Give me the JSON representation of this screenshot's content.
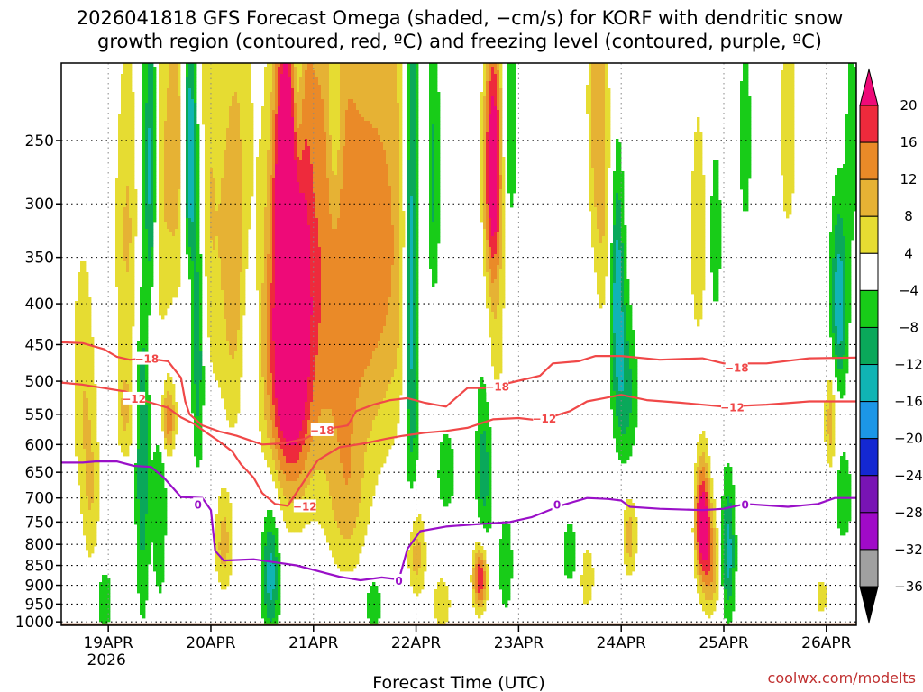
{
  "title_lines": [
    "2026041818 GFS Forecast Omega (shaded, −cm/s) for KORF with dendritic snow",
    "growth region (contoured, red, ºC) and freezing level (contoured, purple, ºC)"
  ],
  "credit": "coolwx.com/modelts",
  "colors": {
    "dendritic_contour": "#f04848",
    "freezing_contour": "#9a10c8",
    "ground": "#9c5a30",
    "grid": "#000000"
  },
  "chart_data": {
    "type": "heatmap",
    "title": "2026041818 GFS Forecast Omega (shaded, −cm/s) for KORF with dendritic snow growth region (contoured, red, ºC) and freezing level (contoured, purple, ºC)",
    "xlabel": "Forecast Time (UTC)",
    "ylabel": "",
    "xlim_hours": [
      -5,
      181
    ],
    "ylim_hPa": [
      200,
      1010
    ],
    "x_ticks": [
      {
        "hour": 6,
        "label": "19APR",
        "sublabel": "2026"
      },
      {
        "hour": 30,
        "label": "20APR",
        "sublabel": ""
      },
      {
        "hour": 54,
        "label": "21APR",
        "sublabel": ""
      },
      {
        "hour": 78,
        "label": "22APR",
        "sublabel": ""
      },
      {
        "hour": 102,
        "label": "23APR",
        "sublabel": ""
      },
      {
        "hour": 126,
        "label": "24APR",
        "sublabel": ""
      },
      {
        "hour": 150,
        "label": "25APR",
        "sublabel": ""
      },
      {
        "hour": 174,
        "label": "26APR",
        "sublabel": ""
      }
    ],
    "y_ticks": [
      250,
      300,
      350,
      400,
      450,
      500,
      550,
      600,
      650,
      700,
      750,
      800,
      850,
      900,
      950,
      1000
    ],
    "colorbar": {
      "labels": [
        "20",
        "16",
        "12",
        "8",
        "4",
        "−4",
        "−8",
        "−12",
        "−16",
        "−20",
        "−24",
        "−28",
        "−32",
        "−36"
      ],
      "bins": [
        {
          "lo": 20,
          "hi": 99,
          "color": "#ee0a78"
        },
        {
          "lo": 16,
          "hi": 20,
          "color": "#ee2a3c"
        },
        {
          "lo": 12,
          "hi": 16,
          "color": "#ea8a28"
        },
        {
          "lo": 8,
          "hi": 12,
          "color": "#e6b234"
        },
        {
          "lo": 4,
          "hi": 8,
          "color": "#e6dc32"
        },
        {
          "lo": -4,
          "hi": 4,
          "color": "#ffffff"
        },
        {
          "lo": -8,
          "hi": -4,
          "color": "#18cc18"
        },
        {
          "lo": -12,
          "hi": -8,
          "color": "#0aa85a"
        },
        {
          "lo": -16,
          "hi": -12,
          "color": "#10b4b4"
        },
        {
          "lo": -20,
          "hi": -16,
          "color": "#1c96e6"
        },
        {
          "lo": -24,
          "hi": -20,
          "color": "#1428d2"
        },
        {
          "lo": -28,
          "hi": -24,
          "color": "#7814b4"
        },
        {
          "lo": -32,
          "hi": -28,
          "color": "#a00ac8"
        },
        {
          "lo": -36,
          "hi": -32,
          "color": "#a0a0a0"
        },
        {
          "lo": -99,
          "hi": -36,
          "color": "#000000"
        }
      ]
    },
    "omega_features": [
      {
        "hour": 49,
        "p": 430,
        "sx": 3,
        "sy": 160,
        "amp": 26
      },
      {
        "hour": 56,
        "p": 360,
        "sx": 6,
        "sy": 230,
        "amp": 11
      },
      {
        "hour": 64,
        "p": 380,
        "sx": 6,
        "sy": 210,
        "amp": 8
      },
      {
        "hour": 72,
        "p": 330,
        "sx": 5,
        "sy": 160,
        "amp": 9
      },
      {
        "hour": 48,
        "p": 270,
        "sx": 2,
        "sy": 70,
        "amp": 18
      },
      {
        "hour": 45,
        "p": 460,
        "sx": 3,
        "sy": 140,
        "amp": 9
      },
      {
        "hour": 96,
        "p": 270,
        "sx": 1.5,
        "sy": 70,
        "amp": 26
      },
      {
        "hour": 96,
        "p": 450,
        "sx": 2,
        "sy": 90,
        "amp": 7
      },
      {
        "hour": 36,
        "p": 350,
        "sx": 3,
        "sy": 160,
        "amp": 11
      },
      {
        "hour": 28,
        "p": 300,
        "sx": 3,
        "sy": 140,
        "amp": 9
      },
      {
        "hour": 16,
        "p": 320,
        "sx": 3,
        "sy": 120,
        "amp": 10
      },
      {
        "hour": 22,
        "p": 250,
        "sx": 2,
        "sy": 80,
        "amp": 9
      },
      {
        "hour": 10,
        "p": 330,
        "sx": 2,
        "sy": 110,
        "amp": 7
      },
      {
        "hour": 20,
        "p": 560,
        "sx": 1.2,
        "sy": 40,
        "amp": 15
      },
      {
        "hour": 0,
        "p": 500,
        "sx": 2,
        "sy": 140,
        "amp": 7
      },
      {
        "hour": 145,
        "p": 750,
        "sx": 1.2,
        "sy": 90,
        "amp": 24
      },
      {
        "hour": 147,
        "p": 850,
        "sx": 1.5,
        "sy": 90,
        "amp": 12
      },
      {
        "hour": 93,
        "p": 880,
        "sx": 1.2,
        "sy": 60,
        "amp": 22
      },
      {
        "hour": 33,
        "p": 800,
        "sx": 1.5,
        "sy": 80,
        "amp": 10
      },
      {
        "hour": 78,
        "p": 820,
        "sx": 1.5,
        "sy": 80,
        "amp": 11
      },
      {
        "hour": 128,
        "p": 780,
        "sx": 1.2,
        "sy": 70,
        "amp": 10
      },
      {
        "hour": 118,
        "p": 880,
        "sx": 1.2,
        "sy": 60,
        "amp": 8
      },
      {
        "hour": 120,
        "p": 220,
        "sx": 1.5,
        "sy": 80,
        "amp": 9
      },
      {
        "hour": 122,
        "p": 300,
        "sx": 1.5,
        "sy": 100,
        "amp": 7
      },
      {
        "hour": 144,
        "p": 330,
        "sx": 1.5,
        "sy": 90,
        "amp": 7
      },
      {
        "hour": 175,
        "p": 560,
        "sx": 1,
        "sy": 60,
        "amp": 11
      },
      {
        "hour": 165,
        "p": 240,
        "sx": 1.5,
        "sy": 70,
        "amp": 7
      },
      {
        "hour": 173,
        "p": 930,
        "sx": 1,
        "sy": 40,
        "amp": 7
      },
      {
        "hour": 84,
        "p": 950,
        "sx": 2,
        "sy": 70,
        "amp": 6
      },
      {
        "hour": 62,
        "p": 720,
        "sx": 3,
        "sy": 110,
        "amp": 7
      },
      {
        "hour": 10,
        "p": 550,
        "sx": 1.5,
        "sy": 60,
        "amp": 8
      },
      {
        "hour": 2,
        "p": 700,
        "sx": 1.5,
        "sy": 120,
        "amp": 7
      },
      {
        "hour": 5,
        "p": 940,
        "sx": 1.5,
        "sy": 70,
        "amp": -7
      },
      {
        "hour": 14,
        "p": 530,
        "sx": 1.2,
        "sy": 300,
        "amp": -13
      },
      {
        "hour": 16,
        "p": 280,
        "sx": 1,
        "sy": 90,
        "amp": -20
      },
      {
        "hour": 18,
        "p": 730,
        "sx": 1.2,
        "sy": 160,
        "amp": -8
      },
      {
        "hour": 25,
        "p": 260,
        "sx": 1.2,
        "sy": 70,
        "amp": -22
      },
      {
        "hour": 27,
        "p": 420,
        "sx": 1.2,
        "sy": 140,
        "amp": -15
      },
      {
        "hour": 39,
        "p": 450,
        "sx": 1.5,
        "sy": 100,
        "amp": -8
      },
      {
        "hour": 44,
        "p": 870,
        "sx": 1.5,
        "sy": 120,
        "amp": -14
      },
      {
        "hour": 50,
        "p": 230,
        "sx": 1.2,
        "sy": 80,
        "amp": -16
      },
      {
        "hour": 59,
        "p": 230,
        "sx": 1.2,
        "sy": 70,
        "amp": -8
      },
      {
        "hour": 77,
        "p": 360,
        "sx": 1.2,
        "sy": 220,
        "amp": -19
      },
      {
        "hour": 82,
        "p": 280,
        "sx": 1.2,
        "sy": 90,
        "amp": -10
      },
      {
        "hour": 85,
        "p": 650,
        "sx": 1.5,
        "sy": 60,
        "amp": -8
      },
      {
        "hour": 94,
        "p": 620,
        "sx": 1.5,
        "sy": 160,
        "amp": -10
      },
      {
        "hour": 99,
        "p": 850,
        "sx": 1.2,
        "sy": 90,
        "amp": -8
      },
      {
        "hour": 114,
        "p": 820,
        "sx": 1.5,
        "sy": 60,
        "amp": -7
      },
      {
        "hour": 125,
        "p": 380,
        "sx": 1.2,
        "sy": 90,
        "amp": -14
      },
      {
        "hour": 127,
        "p": 520,
        "sx": 2,
        "sy": 90,
        "amp": -10
      },
      {
        "hour": 151,
        "p": 820,
        "sx": 1.2,
        "sy": 120,
        "amp": -14
      },
      {
        "hour": 148,
        "p": 330,
        "sx": 1,
        "sy": 60,
        "amp": -8
      },
      {
        "hour": 155,
        "p": 250,
        "sx": 1,
        "sy": 50,
        "amp": -8
      },
      {
        "hour": 177,
        "p": 400,
        "sx": 1.5,
        "sy": 80,
        "amp": -15
      },
      {
        "hour": 180,
        "p": 250,
        "sx": 1,
        "sy": 60,
        "amp": -7
      },
      {
        "hour": 178,
        "p": 700,
        "sx": 1.5,
        "sy": 70,
        "amp": -8
      },
      {
        "hour": 100,
        "p": 240,
        "sx": 1.2,
        "sy": 60,
        "amp": -8
      },
      {
        "hour": 68,
        "p": 950,
        "sx": 1.5,
        "sy": 60,
        "amp": -7
      }
    ],
    "contours": [
      {
        "name": "freezing-level-contour",
        "label": "0",
        "color_key": "freezing_contour",
        "points": [
          [
            -5,
            632
          ],
          [
            0,
            632
          ],
          [
            3,
            630
          ],
          [
            8,
            630
          ],
          [
            12,
            638
          ],
          [
            16,
            640
          ],
          [
            19,
            660
          ],
          [
            23,
            698
          ],
          [
            28,
            700
          ],
          [
            30,
            725
          ],
          [
            31,
            815
          ],
          [
            33,
            838
          ],
          [
            40,
            835
          ],
          [
            50,
            850
          ],
          [
            60,
            878
          ],
          [
            65,
            887
          ],
          [
            70,
            880
          ],
          [
            74,
            885
          ],
          [
            76,
            810
          ],
          [
            79,
            770
          ],
          [
            85,
            760
          ],
          [
            92,
            755
          ],
          [
            100,
            750
          ],
          [
            105,
            740
          ],
          [
            112,
            715
          ],
          [
            118,
            700
          ],
          [
            123,
            702
          ],
          [
            126,
            705
          ],
          [
            128,
            718
          ],
          [
            135,
            722
          ],
          [
            145,
            725
          ],
          [
            150,
            722
          ],
          [
            155,
            712
          ],
          [
            165,
            718
          ],
          [
            172,
            712
          ],
          [
            176,
            700
          ],
          [
            181,
            700
          ]
        ],
        "label_positions": [
          [
            27,
            712
          ],
          [
            74,
            887
          ],
          [
            111,
            712
          ],
          [
            155,
            712
          ]
        ]
      },
      {
        "name": "dsg-minus12-contour",
        "label": "−12",
        "color_key": "dendritic_contour",
        "points": [
          [
            -5,
            502
          ],
          [
            0,
            505
          ],
          [
            5,
            510
          ],
          [
            10,
            515
          ],
          [
            15,
            530
          ],
          [
            20,
            540
          ],
          [
            23,
            555
          ],
          [
            26,
            565
          ],
          [
            29,
            580
          ],
          [
            32,
            595
          ],
          [
            35,
            612
          ],
          [
            37,
            635
          ],
          [
            40,
            660
          ],
          [
            42,
            690
          ],
          [
            45,
            712
          ],
          [
            48,
            716
          ],
          [
            55,
            628
          ],
          [
            60,
            605
          ],
          [
            66,
            598
          ],
          [
            71,
            590
          ],
          [
            75,
            585
          ],
          [
            80,
            580
          ],
          [
            85,
            577
          ],
          [
            90,
            572
          ],
          [
            96,
            558
          ],
          [
            102,
            556
          ],
          [
            107,
            560
          ],
          [
            114,
            545
          ],
          [
            118,
            530
          ],
          [
            122,
            525
          ],
          [
            126,
            520
          ],
          [
            132,
            528
          ],
          [
            140,
            532
          ],
          [
            150,
            538
          ],
          [
            160,
            535
          ],
          [
            170,
            530
          ],
          [
            181,
            530
          ]
        ],
        "label_positions": [
          [
            12,
            525
          ],
          [
            52,
            716
          ],
          [
            108,
            556
          ],
          [
            152,
            538
          ]
        ]
      },
      {
        "name": "dsg-minus18-contour",
        "label": "−18",
        "color_key": "dendritic_contour",
        "points": [
          [
            -5,
            447
          ],
          [
            0,
            448
          ],
          [
            5,
            456
          ],
          [
            8,
            466
          ],
          [
            11,
            470
          ],
          [
            15,
            468
          ],
          [
            20,
            472
          ],
          [
            23,
            495
          ],
          [
            24,
            530
          ],
          [
            25,
            550
          ],
          [
            28,
            568
          ],
          [
            32,
            578
          ],
          [
            36,
            585
          ],
          [
            42,
            600
          ],
          [
            47,
            598
          ],
          [
            52,
            590
          ],
          [
            56,
            575
          ],
          [
            62,
            568
          ],
          [
            64,
            545
          ],
          [
            68,
            535
          ],
          [
            72,
            528
          ],
          [
            76,
            525
          ],
          [
            80,
            532
          ],
          [
            85,
            538
          ],
          [
            90,
            510
          ],
          [
            94,
            510
          ],
          [
            98,
            505
          ],
          [
            103,
            498
          ],
          [
            107,
            492
          ],
          [
            110,
            475
          ],
          [
            116,
            472
          ],
          [
            120,
            465
          ],
          [
            126,
            465
          ],
          [
            135,
            470
          ],
          [
            145,
            468
          ],
          [
            150,
            475
          ],
          [
            160,
            475
          ],
          [
            170,
            468
          ],
          [
            181,
            467
          ]
        ],
        "label_positions": [
          [
            15,
            468
          ],
          [
            56,
            575
          ],
          [
            97,
            507
          ],
          [
            153,
            480
          ]
        ]
      }
    ],
    "ground": {
      "top_hPa": 1004
    }
  }
}
